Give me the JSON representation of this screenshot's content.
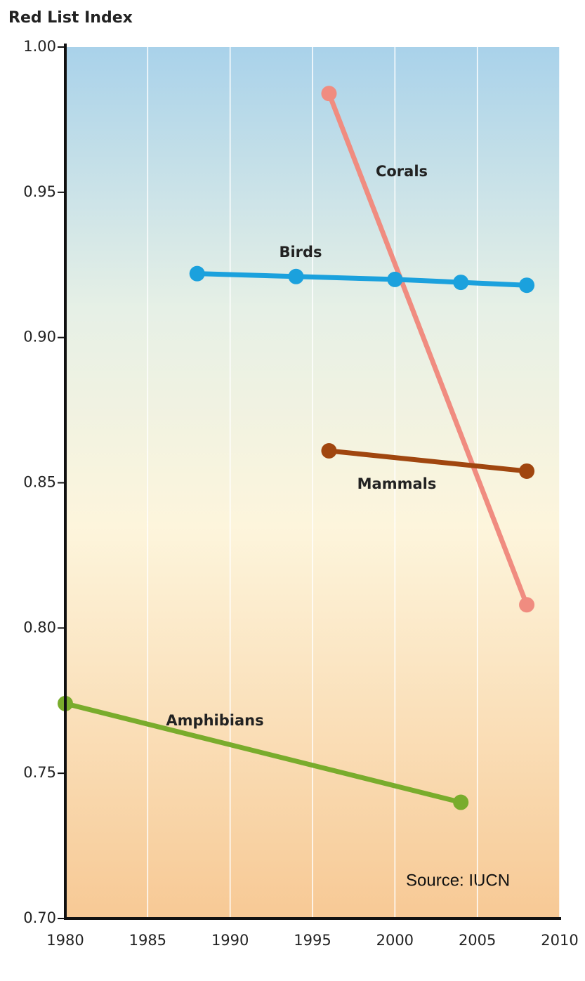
{
  "chart_data": {
    "type": "line",
    "y_label": "Red List Index",
    "annotation": "Source: IUCN",
    "series": [
      {
        "name": "Corals",
        "color": "#f08c80",
        "x": [
          1996,
          2008
        ],
        "values": [
          0.984,
          0.808
        ]
      },
      {
        "name": "Birds",
        "color": "#1ba1dd",
        "x": [
          1988,
          1994,
          2000,
          2004,
          2008
        ],
        "values": [
          0.922,
          0.921,
          0.92,
          0.919,
          0.918
        ]
      },
      {
        "name": "Mammals",
        "color": "#a0460f",
        "x": [
          1996,
          2008
        ],
        "values": [
          0.861,
          0.854
        ]
      },
      {
        "name": "Amphibians",
        "color": "#79ac2c",
        "x": [
          1980,
          2004
        ],
        "values": [
          0.774,
          0.74
        ]
      }
    ],
    "xlim": [
      1980,
      2010
    ],
    "xticks": [
      1980,
      1985,
      1990,
      1995,
      2000,
      2005,
      2010
    ],
    "ylim": [
      0.7,
      1.0
    ],
    "yticks": [
      {
        "value": 0.7,
        "label": "0.70"
      },
      {
        "value": 0.75,
        "label": "0.75"
      },
      {
        "value": 0.8,
        "label": "0.80"
      },
      {
        "value": 0.85,
        "label": "0.85"
      },
      {
        "value": 0.9,
        "label": "0.90"
      },
      {
        "value": 0.95,
        "label": "0.95"
      },
      {
        "value": 1.0,
        "label": "1.00"
      }
    ],
    "grid": true
  }
}
